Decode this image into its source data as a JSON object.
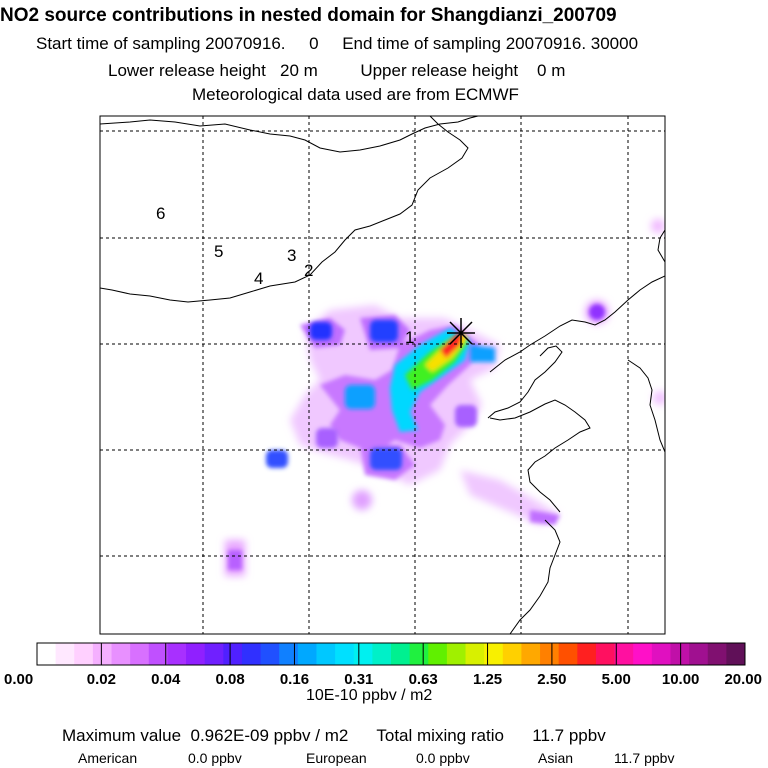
{
  "title": "NO2 source contributions in nested domain for Shangdianzi_200709",
  "sampling": {
    "start_label": "Start time of sampling",
    "start_value": "20070916.     0",
    "end_label": "End time of sampling",
    "end_value": "20070916. 30000"
  },
  "release": {
    "lower_label": "Lower release height",
    "lower_value": "20 m",
    "upper_label": "Upper release height",
    "upper_value": "0 m"
  },
  "meteo": "Meteorological data used are from ECMWF",
  "map": {
    "site_marker": "star-marker",
    "contour_labels": [
      "6",
      "5",
      "3",
      "2",
      "4",
      "1"
    ]
  },
  "colorbar": {
    "tick_labels": [
      "0.00",
      "0.02",
      "0.04",
      "0.08",
      "0.16",
      "0.31",
      "0.63",
      "1.25",
      "2.50",
      "5.00",
      "10.00",
      "20.00"
    ],
    "colors": [
      "#ffffff",
      "#ffe8ff",
      "#ffd0ff",
      "#f5b0ff",
      "#e890ff",
      "#d870ff",
      "#c050ff",
      "#a830ff",
      "#9020ff",
      "#7020ff",
      "#5020ff",
      "#3030ff",
      "#2050ff",
      "#1080ff",
      "#00a8ff",
      "#00c8ff",
      "#00e0ff",
      "#00f0f0",
      "#00f0c8",
      "#00f090",
      "#20f040",
      "#60f000",
      "#a0f000",
      "#d8f000",
      "#f8f000",
      "#ffd000",
      "#ffa800",
      "#ff8000",
      "#ff5000",
      "#ff2020",
      "#ff1060",
      "#ff10a0",
      "#ff10c8",
      "#e010c0",
      "#c010a8",
      "#a01090",
      "#801070",
      "#601058"
    ],
    "units": "10E-10 ppbv / m2"
  },
  "summary": {
    "max_label": "Maximum value",
    "max_value": "0.962E-09 ppbv / m2",
    "total_label": "Total mixing ratio",
    "total_value": "11.7 ppbv"
  },
  "regions": [
    {
      "name": "American",
      "value": "0.0 ppbv"
    },
    {
      "name": "European",
      "value": "0.0 ppbv"
    },
    {
      "name": "Asian",
      "value": "11.7 ppbv"
    }
  ]
}
